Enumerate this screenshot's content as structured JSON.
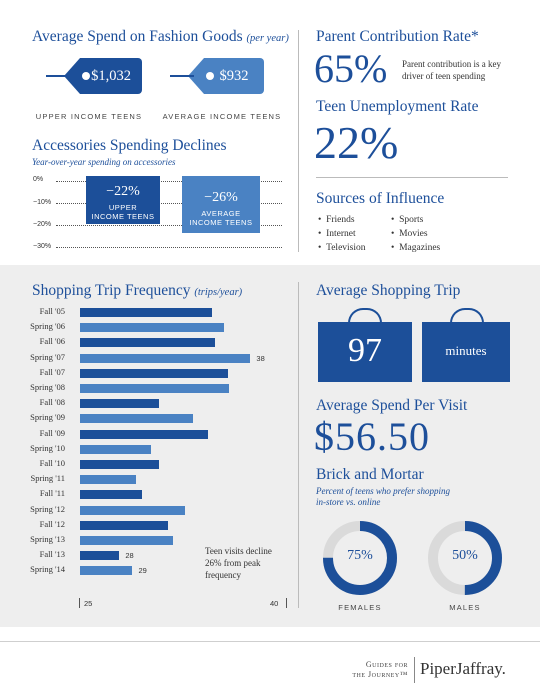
{
  "colors": {
    "dark": "#1c4f99",
    "light": "#4a82c3",
    "ring_bg": "#dadada",
    "panel": "#eeeeee"
  },
  "spend": {
    "title": "Average Spend on Fashion Goods",
    "title_note": "(per year)",
    "upper_value": "$1,032",
    "average_value": "$932",
    "upper_label": "UPPER INCOME TEENS",
    "average_label": "AVERAGE INCOME TEENS"
  },
  "accessories": {
    "title": "Accessories Spending Declines",
    "subtitle": "Year-over-year spending on accessories",
    "y_ticks": [
      "0%",
      "−10%",
      "−20%",
      "−30%"
    ],
    "upper_value": "−22%",
    "upper_label_1": "UPPER",
    "upper_label_2": "INCOME TEENS",
    "average_value": "−26%",
    "average_label_1": "AVERAGE",
    "average_label_2": "INCOME TEENS"
  },
  "parent": {
    "title": "Parent Contribution Rate*",
    "value": "65%",
    "note_1": "Parent contribution is a key",
    "note_2": "driver of teen spending"
  },
  "unemployment": {
    "title": "Teen Unemployment Rate",
    "value": "22%"
  },
  "influence": {
    "title": "Sources of Influence",
    "col1": [
      "Friends",
      "Internet",
      "Television"
    ],
    "col2": [
      "Sports",
      "Movies",
      "Magazines"
    ]
  },
  "trips": {
    "title": "Shopping Trip Frequency",
    "title_note": "(trips/year)",
    "annotation": [
      "Teen visits decline",
      "26% from peak",
      "frequency"
    ],
    "axis_min_label": "25",
    "axis_max_label": "40"
  },
  "avg_trip": {
    "title": "Average Shopping Trip",
    "value": "97",
    "unit": "minutes"
  },
  "avg_spend": {
    "title": "Average Spend Per Visit",
    "value": "$56.50"
  },
  "brick": {
    "title": "Brick and Mortar",
    "subtitle_1": "Percent of teens who prefer shopping",
    "subtitle_2": "in-store vs. online",
    "females_value": "75%",
    "females_label": "FEMALES",
    "males_value": "50%",
    "males_label": "MALES"
  },
  "footer": {
    "guides_1": "Guides for",
    "guides_2": "the Journey™",
    "brand": "PiperJaffray."
  },
  "chart_data": [
    {
      "type": "bar",
      "orientation": "horizontal",
      "title": "Shopping Trip Frequency (trips/year)",
      "xlim": [
        25,
        40
      ],
      "categories": [
        "Fall '05",
        "Spring '06",
        "Fall '06",
        "Spring '07",
        "Fall '07",
        "Spring '08",
        "Fall '08",
        "Spring '09",
        "Fall '09",
        "Spring '10",
        "Fall '10",
        "Spring '11",
        "Fall '11",
        "Spring '12",
        "Fall '12",
        "Spring '13",
        "Fall '13",
        "Spring '14"
      ],
      "values": [
        35.1,
        36.0,
        35.3,
        38,
        36.3,
        36.4,
        31.0,
        33.6,
        34.8,
        30.4,
        31.0,
        29.3,
        29.7,
        33.0,
        31.7,
        32.1,
        28,
        29
      ],
      "labeled": {
        "Spring '07": "38",
        "Fall '13": "28",
        "Spring '14": "29"
      }
    },
    {
      "type": "bar",
      "title": "Accessories Spending Declines",
      "categories": [
        "UPPER INCOME TEENS",
        "AVERAGE INCOME TEENS"
      ],
      "values": [
        -22,
        -26
      ],
      "ylim": [
        -30,
        0
      ]
    },
    {
      "type": "pie",
      "title": "Brick and Mortar",
      "series": [
        {
          "name": "FEMALES",
          "values": [
            75,
            25
          ]
        },
        {
          "name": "MALES",
          "values": [
            50,
            50
          ]
        }
      ]
    }
  ]
}
